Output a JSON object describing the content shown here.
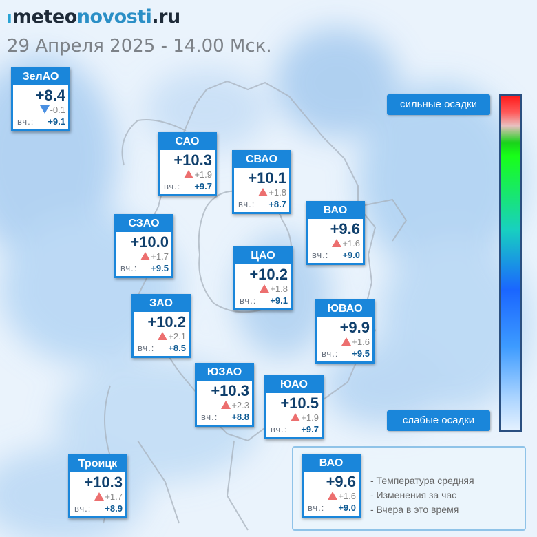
{
  "header": {
    "logo_mark": "ı",
    "logo_part1": "meteo",
    "logo_part2": "novosti",
    "logo_part3": ".ru",
    "datetime": "29 Апреля 2025 - 14.00 Мск."
  },
  "yesterday_label": "вч.:",
  "districts": [
    {
      "name": "ЗелАО",
      "temp": "+8.4",
      "change": "-0.1",
      "direction": "down",
      "yesterday": "+9.1"
    },
    {
      "name": "САО",
      "temp": "+10.3",
      "change": "+1.9",
      "direction": "up",
      "yesterday": "+9.7"
    },
    {
      "name": "СВАО",
      "temp": "+10.1",
      "change": "+1.8",
      "direction": "up",
      "yesterday": "+8.7"
    },
    {
      "name": "ВАО",
      "temp": "+9.6",
      "change": "+1.6",
      "direction": "up",
      "yesterday": "+9.0"
    },
    {
      "name": "СЗАО",
      "temp": "+10.0",
      "change": "+1.7",
      "direction": "up",
      "yesterday": "+9.5"
    },
    {
      "name": "ЦАО",
      "temp": "+10.2",
      "change": "+1.8",
      "direction": "up",
      "yesterday": "+9.1"
    },
    {
      "name": "ЗАО",
      "temp": "+10.2",
      "change": "+2.1",
      "direction": "up",
      "yesterday": "+8.5"
    },
    {
      "name": "ЮВАО",
      "temp": "+9.9",
      "change": "+1.6",
      "direction": "up",
      "yesterday": "+9.5"
    },
    {
      "name": "ЮЗАО",
      "temp": "+10.3",
      "change": "+2.3",
      "direction": "up",
      "yesterday": "+8.8"
    },
    {
      "name": "ЮАО",
      "temp": "+10.5",
      "change": "+1.9",
      "direction": "up",
      "yesterday": "+9.7"
    },
    {
      "name": "Троицк",
      "temp": "+10.3",
      "change": "+1.7",
      "direction": "up",
      "yesterday": "+8.9"
    }
  ],
  "scale": {
    "top_label": "сильные осадки",
    "bottom_label": "слабые осадки",
    "colors": [
      "#ff1a1a",
      "#18ff18",
      "#1a66ff",
      "#e4f1ff"
    ]
  },
  "legend": {
    "sample": {
      "name": "ВАО",
      "temp": "+9.6",
      "change": "+1.6",
      "direction": "up",
      "yesterday": "+9.0"
    },
    "line1": "- Температура средняя",
    "line2": "- Изменения за час",
    "line3": "- Вчера в это время"
  },
  "colors": {
    "accent": "#1a86da",
    "temp_text": "#0f3f6c",
    "rise": "#ec6f6f",
    "fall": "#4a90e2"
  }
}
